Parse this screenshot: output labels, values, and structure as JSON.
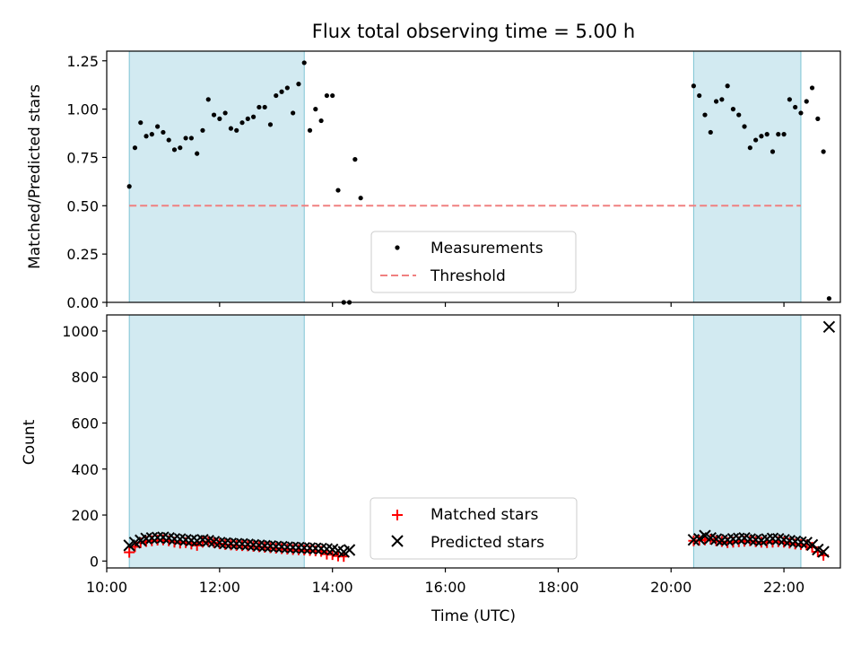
{
  "chart_data": {
    "title": "Flux total observing time = 5.00 h",
    "xlabel": "Time (UTC)",
    "x_unit": "hours UTC",
    "xlim": [
      "10:00",
      "23:00"
    ],
    "x_ticks": [
      "10:00",
      "12:00",
      "14:00",
      "16:00",
      "18:00",
      "20:00",
      "22:00"
    ],
    "shaded_intervals": [
      [
        "10:24",
        "13:30"
      ],
      [
        "20:24",
        "22:18"
      ]
    ],
    "shade_color": "#add8e6",
    "panels": [
      {
        "type": "scatter",
        "ylabel": "Matched/Predicted stars",
        "ylim": [
          0,
          1.3
        ],
        "y_ticks": [
          "0.00",
          "0.25",
          "0.50",
          "0.75",
          "1.00",
          "1.25"
        ],
        "legend_placement": "lower-center",
        "series": [
          {
            "name": "Measurements",
            "marker": "dot",
            "color": "#000000",
            "points": [
              [
                "10:24",
                0.6
              ],
              [
                "10:30",
                0.8
              ],
              [
                "10:36",
                0.93
              ],
              [
                "10:42",
                0.86
              ],
              [
                "10:48",
                0.87
              ],
              [
                "10:54",
                0.91
              ],
              [
                "11:00",
                0.88
              ],
              [
                "11:06",
                0.84
              ],
              [
                "11:12",
                0.79
              ],
              [
                "11:18",
                0.8
              ],
              [
                "11:24",
                0.85
              ],
              [
                "11:30",
                0.85
              ],
              [
                "11:36",
                0.77
              ],
              [
                "11:42",
                0.89
              ],
              [
                "11:48",
                1.05
              ],
              [
                "11:54",
                0.97
              ],
              [
                "12:00",
                0.95
              ],
              [
                "12:06",
                0.98
              ],
              [
                "12:12",
                0.9
              ],
              [
                "12:18",
                0.89
              ],
              [
                "12:24",
                0.93
              ],
              [
                "12:30",
                0.95
              ],
              [
                "12:36",
                0.96
              ],
              [
                "12:42",
                1.01
              ],
              [
                "12:48",
                1.01
              ],
              [
                "12:54",
                0.92
              ],
              [
                "13:00",
                1.07
              ],
              [
                "13:06",
                1.09
              ],
              [
                "13:12",
                1.11
              ],
              [
                "13:18",
                0.98
              ],
              [
                "13:24",
                1.13
              ],
              [
                "13:30",
                1.24
              ],
              [
                "13:36",
                0.89
              ],
              [
                "13:42",
                1.0
              ],
              [
                "13:48",
                0.94
              ],
              [
                "13:54",
                1.07
              ],
              [
                "14:00",
                1.07
              ],
              [
                "14:06",
                0.58
              ],
              [
                "14:12",
                0.0
              ],
              [
                "14:18",
                0.0
              ],
              [
                "14:24",
                0.74
              ],
              [
                "14:30",
                0.54
              ],
              [
                "20:24",
                1.12
              ],
              [
                "20:30",
                1.07
              ],
              [
                "20:36",
                0.97
              ],
              [
                "20:42",
                0.88
              ],
              [
                "20:48",
                1.04
              ],
              [
                "20:54",
                1.05
              ],
              [
                "21:00",
                1.12
              ],
              [
                "21:06",
                1.0
              ],
              [
                "21:12",
                0.97
              ],
              [
                "21:18",
                0.91
              ],
              [
                "21:24",
                0.8
              ],
              [
                "21:30",
                0.84
              ],
              [
                "21:36",
                0.86
              ],
              [
                "21:42",
                0.87
              ],
              [
                "21:48",
                0.78
              ],
              [
                "21:54",
                0.87
              ],
              [
                "22:00",
                0.87
              ],
              [
                "22:06",
                1.05
              ],
              [
                "22:12",
                1.01
              ],
              [
                "22:18",
                0.98
              ],
              [
                "22:24",
                1.04
              ],
              [
                "22:30",
                1.11
              ],
              [
                "22:36",
                0.95
              ],
              [
                "22:42",
                0.78
              ],
              [
                "22:48",
                0.02
              ]
            ]
          },
          {
            "name": "Threshold",
            "marker": "dashed-line",
            "color": "#f08080",
            "points": [
              [
                "10:24",
                0.5
              ],
              [
                "22:18",
                0.5
              ]
            ]
          }
        ]
      },
      {
        "type": "scatter",
        "ylabel": "Count",
        "ylim": [
          -30,
          1070
        ],
        "y_ticks": [
          "0",
          "200",
          "400",
          "600",
          "800",
          "1000"
        ],
        "legend_placement": "lower-center",
        "series": [
          {
            "name": "Matched stars",
            "marker": "plus",
            "color": "#ff0000",
            "points": [
              [
                "10:24",
                38
              ],
              [
                "10:30",
                62
              ],
              [
                "10:36",
                80
              ],
              [
                "10:42",
                85
              ],
              [
                "10:48",
                88
              ],
              [
                "10:54",
                91
              ],
              [
                "11:00",
                92
              ],
              [
                "11:06",
                88
              ],
              [
                "11:12",
                82
              ],
              [
                "11:18",
                78
              ],
              [
                "11:24",
                80
              ],
              [
                "11:30",
                74
              ],
              [
                "11:36",
                68
              ],
              [
                "11:42",
                82
              ],
              [
                "11:48",
                85
              ],
              [
                "11:54",
                80
              ],
              [
                "12:00",
                75
              ],
              [
                "12:06",
                72
              ],
              [
                "12:12",
                70
              ],
              [
                "12:18",
                68
              ],
              [
                "12:24",
                67
              ],
              [
                "12:30",
                66
              ],
              [
                "12:36",
                64
              ],
              [
                "12:42",
                62
              ],
              [
                "12:48",
                60
              ],
              [
                "12:54",
                58
              ],
              [
                "13:00",
                56
              ],
              [
                "13:06",
                54
              ],
              [
                "13:12",
                52
              ],
              [
                "13:18",
                50
              ],
              [
                "13:24",
                49
              ],
              [
                "13:30",
                48
              ],
              [
                "13:36",
                46
              ],
              [
                "13:42",
                44
              ],
              [
                "13:48",
                42
              ],
              [
                "13:54",
                30
              ],
              [
                "14:00",
                28
              ],
              [
                "14:06",
                22
              ],
              [
                "14:12",
                20
              ],
              [
                "20:24",
                88
              ],
              [
                "20:30",
                90
              ],
              [
                "20:36",
                92
              ],
              [
                "20:42",
                95
              ],
              [
                "20:48",
                88
              ],
              [
                "20:54",
                85
              ],
              [
                "21:00",
                80
              ],
              [
                "21:06",
                82
              ],
              [
                "21:12",
                84
              ],
              [
                "21:18",
                86
              ],
              [
                "21:24",
                88
              ],
              [
                "21:30",
                84
              ],
              [
                "21:36",
                82
              ],
              [
                "21:42",
                80
              ],
              [
                "21:48",
                82
              ],
              [
                "21:54",
                84
              ],
              [
                "22:00",
                82
              ],
              [
                "22:06",
                78
              ],
              [
                "22:12",
                74
              ],
              [
                "22:18",
                72
              ],
              [
                "22:24",
                70
              ],
              [
                "22:30",
                60
              ],
              [
                "22:36",
                40
              ],
              [
                "22:42",
                25
              ]
            ]
          },
          {
            "name": "Predicted stars",
            "marker": "x",
            "color": "#000000",
            "points": [
              [
                "10:24",
                68
              ],
              [
                "10:30",
                80
              ],
              [
                "10:36",
                90
              ],
              [
                "10:42",
                98
              ],
              [
                "10:48",
                100
              ],
              [
                "10:54",
                102
              ],
              [
                "11:00",
                103
              ],
              [
                "11:06",
                100
              ],
              [
                "11:12",
                96
              ],
              [
                "11:18",
                95
              ],
              [
                "11:24",
                92
              ],
              [
                "11:30",
                90
              ],
              [
                "11:36",
                88
              ],
              [
                "11:42",
                92
              ],
              [
                "11:48",
                88
              ],
              [
                "11:54",
                84
              ],
              [
                "12:00",
                80
              ],
              [
                "12:06",
                78
              ],
              [
                "12:12",
                76
              ],
              [
                "12:18",
                75
              ],
              [
                "12:24",
                74
              ],
              [
                "12:30",
                72
              ],
              [
                "12:36",
                70
              ],
              [
                "12:42",
                68
              ],
              [
                "12:48",
                66
              ],
              [
                "12:54",
                65
              ],
              [
                "13:00",
                63
              ],
              [
                "13:06",
                62
              ],
              [
                "13:12",
                60
              ],
              [
                "13:18",
                59
              ],
              [
                "13:24",
                58
              ],
              [
                "13:30",
                57
              ],
              [
                "13:36",
                56
              ],
              [
                "13:42",
                55
              ],
              [
                "13:48",
                54
              ],
              [
                "13:54",
                52
              ],
              [
                "14:00",
                50
              ],
              [
                "14:06",
                45
              ],
              [
                "14:12",
                40
              ],
              [
                "14:18",
                48
              ],
              [
                "20:24",
                92
              ],
              [
                "20:30",
                96
              ],
              [
                "20:36",
                110
              ],
              [
                "20:42",
                100
              ],
              [
                "20:48",
                95
              ],
              [
                "20:54",
                90
              ],
              [
                "21:00",
                92
              ],
              [
                "21:06",
                96
              ],
              [
                "21:12",
                98
              ],
              [
                "21:18",
                100
              ],
              [
                "21:24",
                95
              ],
              [
                "21:30",
                92
              ],
              [
                "21:36",
                90
              ],
              [
                "21:42",
                95
              ],
              [
                "21:48",
                98
              ],
              [
                "21:54",
                96
              ],
              [
                "22:00",
                92
              ],
              [
                "22:06",
                88
              ],
              [
                "22:12",
                85
              ],
              [
                "22:18",
                82
              ],
              [
                "22:24",
                80
              ],
              [
                "22:30",
                70
              ],
              [
                "22:36",
                50
              ],
              [
                "22:42",
                40
              ],
              [
                "22:48",
                1018
              ]
            ]
          }
        ]
      }
    ]
  }
}
